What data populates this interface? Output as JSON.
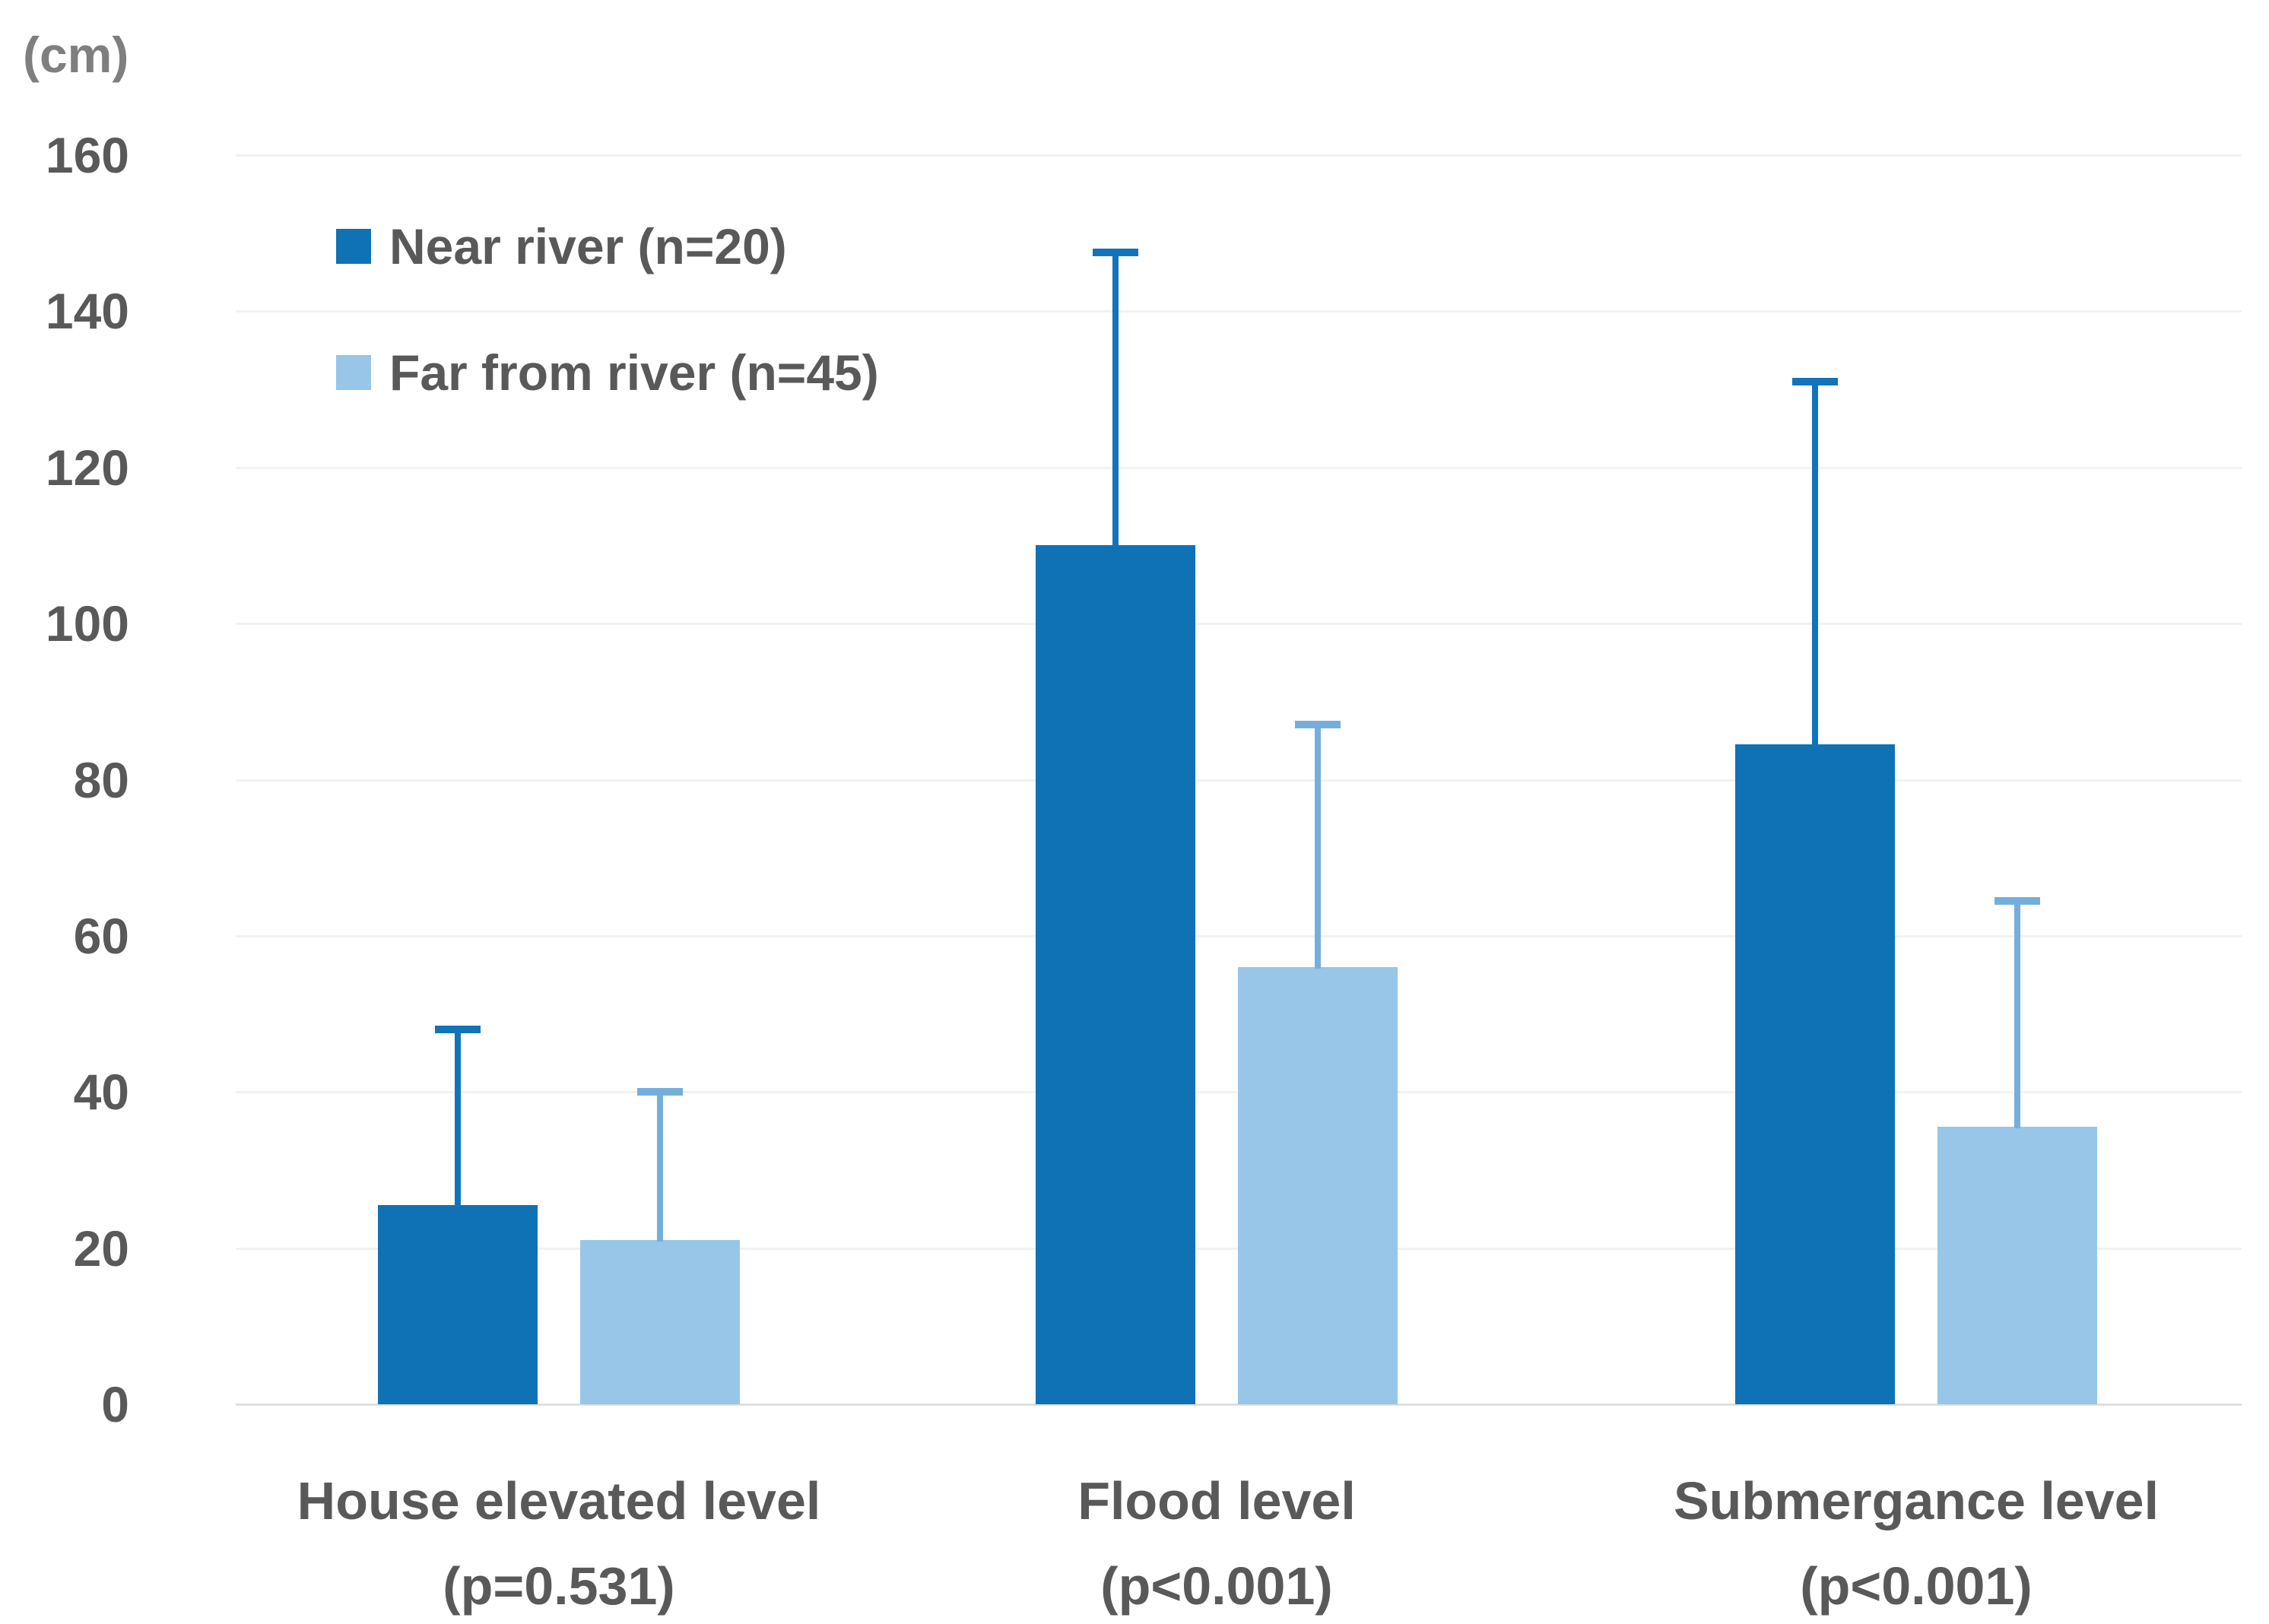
{
  "chart_data": {
    "type": "bar",
    "title": "",
    "unit_label": "(cm)",
    "xlabel": "",
    "ylabel": "(cm)",
    "ylim": [
      0,
      160
    ],
    "ytick_step": 20,
    "yticks": [
      0,
      20,
      40,
      60,
      80,
      100,
      120,
      140,
      160
    ],
    "grid": true,
    "legend_position": "top-left-inside",
    "categories": [
      "House elevated level",
      "Flood level",
      "Submergance level"
    ],
    "category_sublabels": [
      "(p=0.531)",
      "(p<0.001)",
      "(p<0.001)"
    ],
    "series": [
      {
        "name": "Near river (n=20)",
        "color": "#0e72b5",
        "whisker_color": "#1174bb",
        "values": [
          25.5,
          110,
          84.5
        ],
        "error_plus": [
          23,
          38,
          47
        ]
      },
      {
        "name": "Far from river (n=45)",
        "color": "#97c6e9",
        "whisker_color": "#74afdc",
        "values": [
          21,
          56,
          35.5
        ],
        "error_plus": [
          19.5,
          31.5,
          29.5
        ]
      }
    ]
  },
  "colors": {
    "background": "#ffffff",
    "axis_text": "#595959",
    "unit_text": "#7f7f7f",
    "gridline": "#f2f2f2",
    "baseline": "#e0e0e0"
  }
}
